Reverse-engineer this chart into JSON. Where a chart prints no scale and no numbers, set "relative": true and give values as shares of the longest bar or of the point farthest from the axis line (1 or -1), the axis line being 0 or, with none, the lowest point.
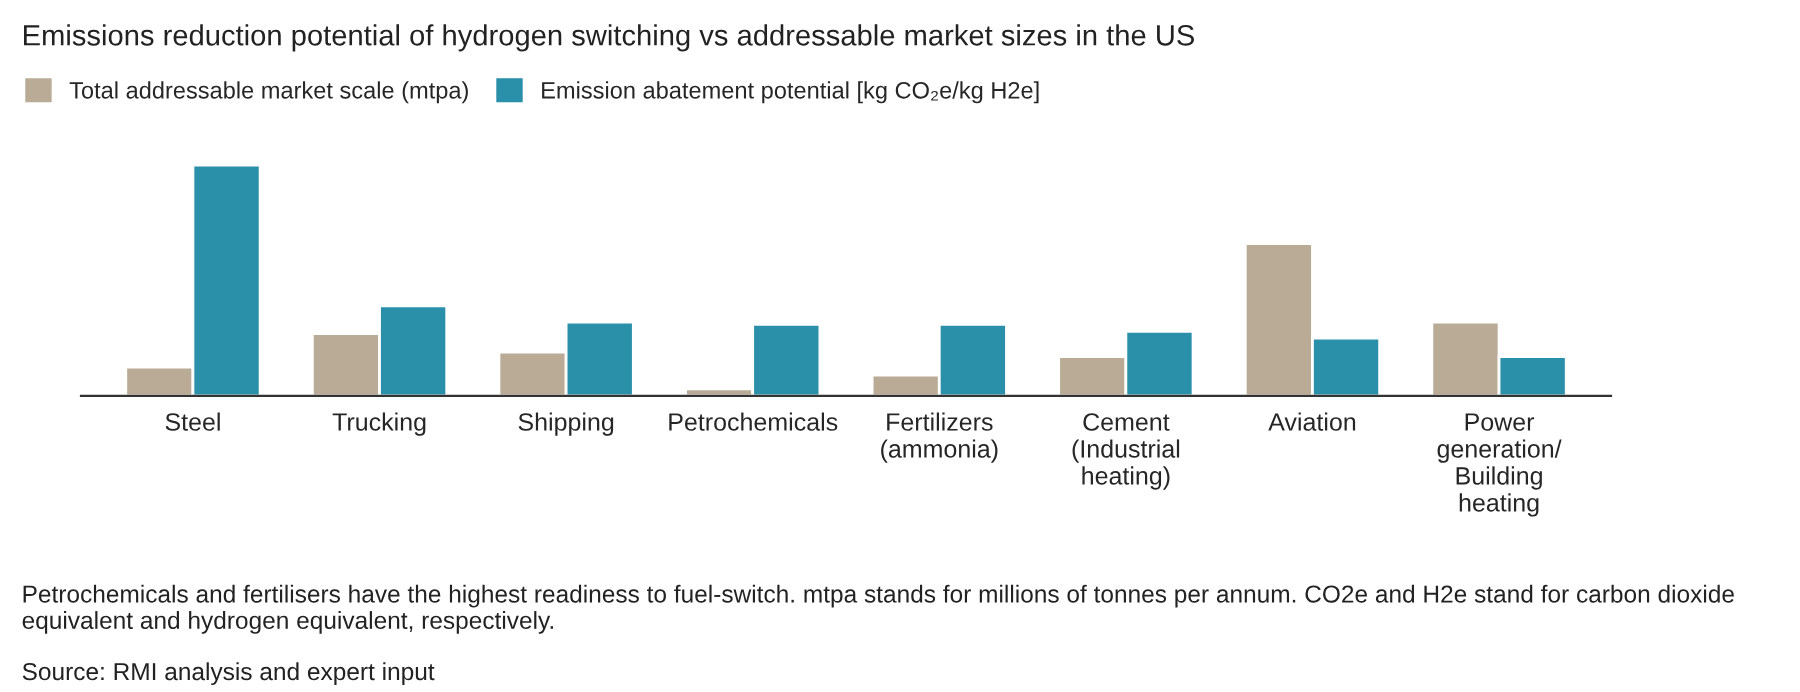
{
  "chart_data": {
    "type": "bar",
    "title": "Emissions reduction potential of hydrogen switching vs addressable market sizes in the US",
    "categories": [
      "Steel",
      "Trucking",
      "Shipping",
      "Petrochemicals",
      "Fertilizers\n(ammonia)",
      "Cement\n(Industrial\nheating)",
      "Aviation",
      "Power\ngeneration/\nBuilding\nheating"
    ],
    "relative": true,
    "series": [
      {
        "name": "Total addressable market scale (mtpa)",
        "color": "#b9ab96",
        "values": [
          0.125,
          0.27,
          0.19,
          0.03,
          0.09,
          0.17,
          0.66,
          0.32
        ]
      },
      {
        "name": "Emission abatement potential [kg CO₂e/kg H2e]",
        "color": "#2a8fa8",
        "values": [
          1,
          0.39,
          0.32,
          0.31,
          0.31,
          0.28,
          0.25,
          0.17
        ]
      }
    ],
    "legend": "top left",
    "grid": false,
    "annotations": [
      "Petrochemicals and fertilisers have the highest readiness to fuel-switch. mtpa stands for millions of tonnes per annum. CO2e and H2e stand for carbon dioxide equivalent and hydrogen equivalent, respectively.",
      "Source: RMI analysis and expert input"
    ]
  }
}
